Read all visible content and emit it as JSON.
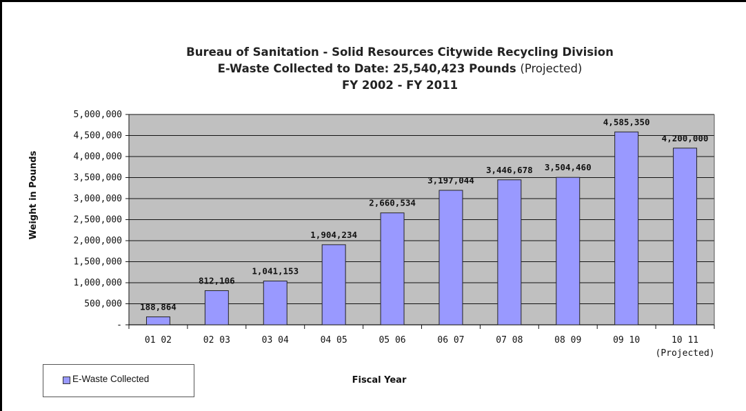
{
  "chart_data": {
    "type": "bar",
    "title_lines": [
      "Bureau of Sanitation - Solid Resources Citywide Recycling Division",
      "E-Waste Collected to Date:  25,540,423  Pounds",
      "FY 2002 - FY 2011"
    ],
    "title_suffix": "(Projected)",
    "categories": [
      "01 02",
      "02 03",
      "03 04",
      "04 05",
      "05 06",
      "06 07",
      "07 08",
      "08 09",
      "09 10",
      "10 11"
    ],
    "category_sublabels": [
      "",
      "",
      "",
      "",
      "",
      "",
      "",
      "",
      "",
      "(Projected)"
    ],
    "series": [
      {
        "name": "E-Waste Collected",
        "values": [
          188864,
          812106,
          1041153,
          1904234,
          2660534,
          3197044,
          3446678,
          3504460,
          4585350,
          4200000
        ],
        "labels": [
          "188,864",
          "812,106",
          "1,041,153",
          "1,904,234",
          "2,660,534",
          "3,197,044",
          "3,446,678",
          "3,504,460",
          "4,585,350",
          "4,200,000"
        ]
      }
    ],
    "xlabel": "Fiscal Year",
    "ylabel": "Weight in Pounds",
    "ylim": [
      0,
      5000000
    ],
    "yticks": [
      0,
      500000,
      1000000,
      1500000,
      2000000,
      2500000,
      3000000,
      3500000,
      4000000,
      4500000,
      5000000
    ],
    "ytick_labels": [
      "-",
      "500,000",
      "1,000,000",
      "1,500,000",
      "2,000,000",
      "2,500,000",
      "3,000,000",
      "3,500,000",
      "4,000,000",
      "4,500,000",
      "5,000,000"
    ],
    "grid": true,
    "legend_position": "bottom-left",
    "colors": {
      "bar": "#9999ff",
      "bar_border": "#222222",
      "plot_background": "#c0c0c0",
      "gridline": "#111111"
    }
  }
}
